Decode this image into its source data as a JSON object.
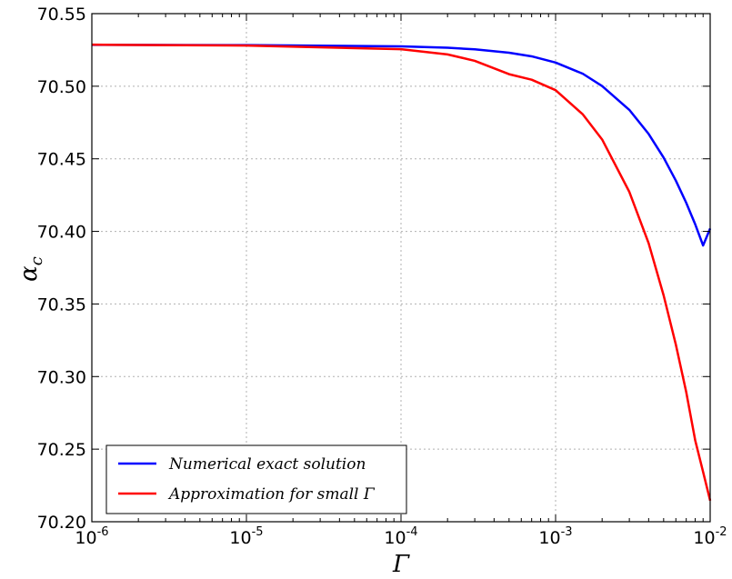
{
  "chart_data": {
    "type": "line",
    "xscale": "log",
    "xlim": [
      1e-06,
      0.01
    ],
    "ylim": [
      70.2,
      70.55
    ],
    "xlabel": "Γ",
    "ylabel": "α",
    "ylabel_subscript": "c",
    "grid": true,
    "legend_position": "bottom-left",
    "x_ticks": [
      {
        "base": "10",
        "exp": "-6"
      },
      {
        "base": "10",
        "exp": "-5"
      },
      {
        "base": "10",
        "exp": "-4"
      },
      {
        "base": "10",
        "exp": "-3"
      },
      {
        "base": "10",
        "exp": "-2"
      }
    ],
    "y_ticks": [
      "70.20",
      "70.25",
      "70.30",
      "70.35",
      "70.40",
      "70.45",
      "70.50",
      "70.55"
    ],
    "series": [
      {
        "name": "Numerical exact solution",
        "color": "#0000ff",
        "x": [
          1e-06,
          1e-05,
          0.0001,
          0.0002,
          0.0003,
          0.0005,
          0.0007,
          0.001,
          0.0015,
          0.002,
          0.003,
          0.004,
          0.005,
          0.006,
          0.007,
          0.008,
          0.009,
          0.01
        ],
        "y": [
          70.5285,
          70.5283,
          70.5275,
          70.5265,
          70.5254,
          70.5231,
          70.5206,
          70.5163,
          70.5086,
          70.5001,
          70.4837,
          70.4671,
          70.4508,
          70.4349,
          70.4197,
          70.4049,
          70.3903,
          70.402
        ]
      },
      {
        "name": "Approximation for small Γ",
        "color": "#ff0000",
        "x": [
          1e-06,
          1e-05,
          0.0001,
          0.0002,
          0.0003,
          0.0005,
          0.0007,
          0.001,
          0.0015,
          0.002,
          0.003,
          0.004,
          0.005,
          0.006,
          0.007,
          0.008,
          0.009,
          0.01
        ],
        "y": [
          70.5286,
          70.528,
          70.5255,
          70.5219,
          70.5175,
          70.5083,
          70.5045,
          70.4973,
          70.4806,
          70.4633,
          70.4272,
          70.3918,
          70.3559,
          70.3219,
          70.2893,
          70.2561,
          70.2343,
          70.2145
        ]
      }
    ]
  }
}
